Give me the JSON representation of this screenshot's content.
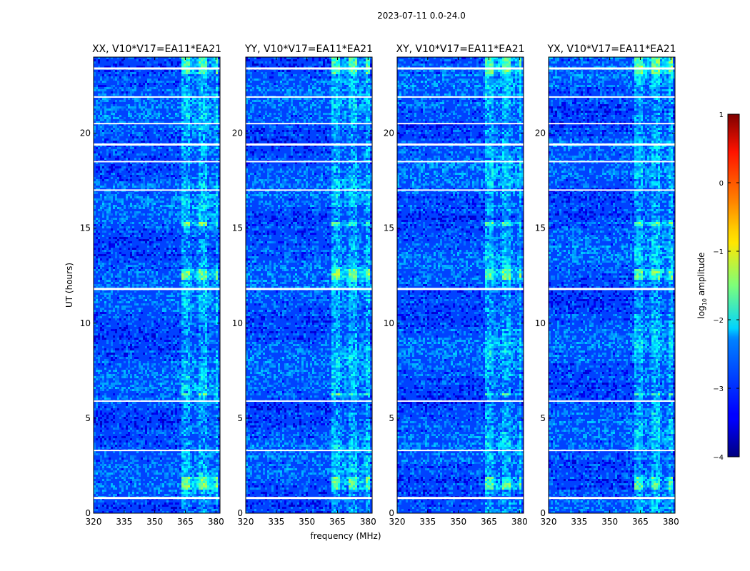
{
  "figure": {
    "suptitle": "2023-07-11 0.0-24.0"
  },
  "chart_data": [
    {
      "type": "heatmap",
      "title": "XX, V10*V17=EA11*EA21",
      "xlabel": "",
      "ylabel": "UT (hours)",
      "xlim": [
        320,
        382
      ],
      "ylim": [
        0,
        24
      ],
      "xticks": [
        "320",
        "335",
        "350",
        "365",
        "380"
      ],
      "yticks": [
        "0",
        "5",
        "10",
        "15",
        "20"
      ],
      "strong_band_mhz": [
        363,
        380
      ],
      "bright_rows_hours": [
        [
          1.3,
          2.0
        ],
        [
          6.2,
          6.4
        ],
        [
          12.3,
          12.9
        ],
        [
          15.2,
          15.4
        ],
        [
          23.1,
          24.0
        ]
      ],
      "flagged_rows_hours": [
        0.8,
        3.3,
        5.9,
        11.8,
        17.0,
        18.5,
        19.4,
        20.5,
        21.9,
        23.4
      ]
    },
    {
      "type": "heatmap",
      "title": "YY, V10*V17=EA11*EA21",
      "xlabel": "frequency (MHz)",
      "ylabel": "",
      "xlim": [
        320,
        382
      ],
      "ylim": [
        0,
        24
      ],
      "xticks": [
        "320",
        "335",
        "350",
        "365",
        "380"
      ],
      "yticks": [
        "0",
        "5",
        "10",
        "15",
        "20"
      ],
      "strong_band_mhz": [
        362,
        380
      ],
      "bright_rows_hours": [
        [
          1.3,
          2.0
        ],
        [
          6.2,
          6.4
        ],
        [
          12.3,
          12.9
        ],
        [
          15.2,
          15.4
        ],
        [
          23.1,
          24.0
        ]
      ],
      "flagged_rows_hours": [
        0.8,
        3.3,
        5.9,
        11.8,
        17.0,
        18.5,
        19.4,
        20.5,
        21.9,
        23.4
      ]
    },
    {
      "type": "heatmap",
      "title": "XY, V10*V17=EA11*EA21",
      "xlabel": "",
      "ylabel": "",
      "xlim": [
        320,
        382
      ],
      "ylim": [
        0,
        24
      ],
      "xticks": [
        "320",
        "335",
        "350",
        "365",
        "380"
      ],
      "yticks": [
        "0",
        "5",
        "10",
        "15",
        "20"
      ],
      "strong_band_mhz": [
        363,
        380
      ],
      "bright_rows_hours": [
        [
          1.3,
          2.0
        ],
        [
          6.2,
          6.4
        ],
        [
          12.3,
          12.9
        ],
        [
          15.2,
          15.4
        ],
        [
          23.1,
          24.0
        ]
      ],
      "flagged_rows_hours": [
        0.8,
        3.3,
        5.9,
        11.8,
        17.0,
        18.5,
        19.4,
        20.5,
        21.9,
        23.4
      ]
    },
    {
      "type": "heatmap",
      "title": "YX, V10*V17=EA11*EA21",
      "xlabel": "",
      "ylabel": "",
      "xlim": [
        320,
        382
      ],
      "ylim": [
        0,
        24
      ],
      "xticks": [
        "320",
        "335",
        "350",
        "365",
        "380"
      ],
      "yticks": [
        "0",
        "5",
        "10",
        "15",
        "20"
      ],
      "strong_band_mhz": [
        362,
        380
      ],
      "bright_rows_hours": [
        [
          1.3,
          2.0
        ],
        [
          6.2,
          6.4
        ],
        [
          12.3,
          12.9
        ],
        [
          15.2,
          15.4
        ],
        [
          23.1,
          24.0
        ]
      ],
      "flagged_rows_hours": [
        0.8,
        3.3,
        5.9,
        11.8,
        17.0,
        18.5,
        19.4,
        20.5,
        21.9,
        23.4
      ]
    }
  ],
  "colorbar": {
    "label_prefix": "log",
    "label_sub": "10",
    "label_suffix": " amplitude",
    "range": [
      -4,
      1
    ],
    "ticks": [
      "1",
      "0",
      "−1",
      "−2",
      "−3",
      "−4"
    ],
    "colormap": "jet"
  }
}
